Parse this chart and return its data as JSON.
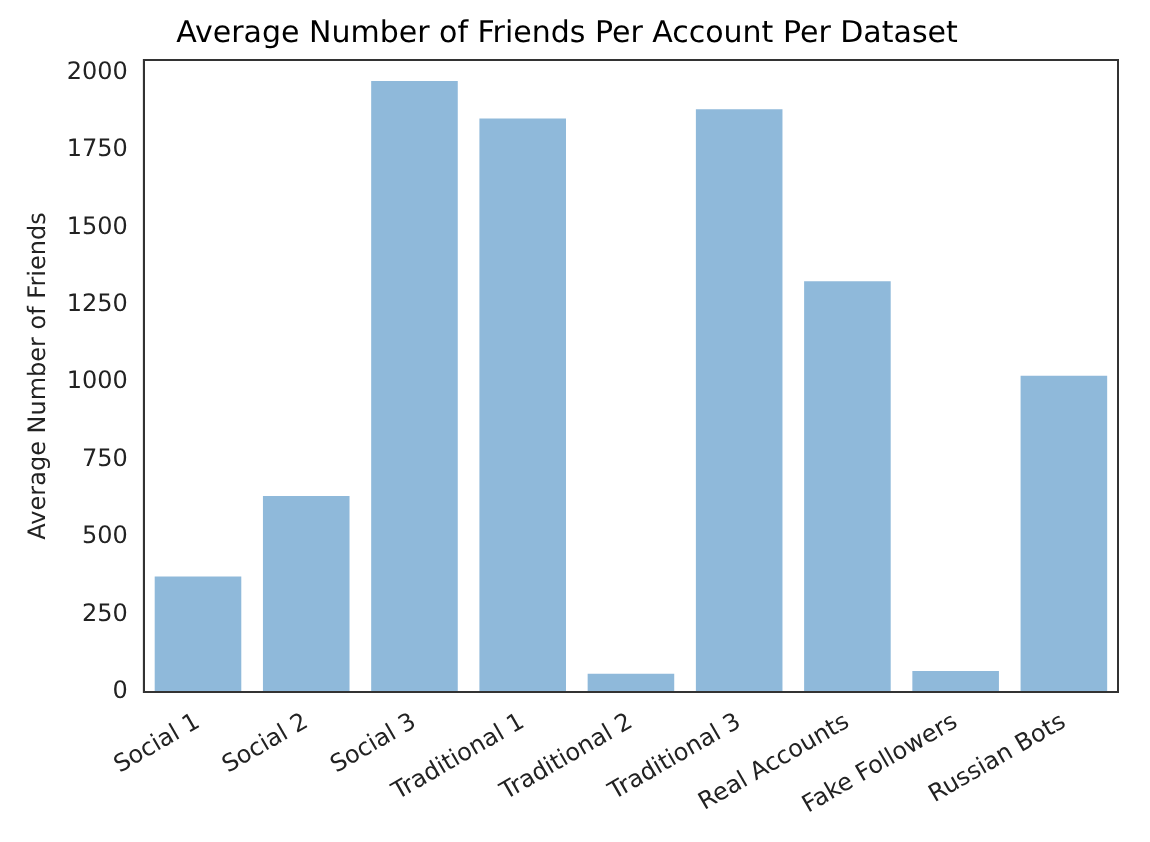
{
  "chart_data": {
    "type": "bar",
    "title": "Average Number of Friends Per Account Per Dataset",
    "ylabel": "Average Number of Friends",
    "categories": [
      "Social 1",
      "Social 2",
      "Social 3",
      "Traditional 1",
      "Traditional 2",
      "Traditional 3",
      "Real Accounts",
      "Fake Followers",
      "Russian Bots"
    ],
    "values": [
      373,
      633,
      1972,
      1851,
      59,
      1881,
      1326,
      68,
      1021
    ],
    "color": "#8fb9da",
    "ylim": [
      0,
      2040
    ],
    "yticks": [
      0,
      250,
      500,
      750,
      1000,
      1250,
      1500,
      1750,
      2000
    ],
    "grid": false,
    "legend": false
  }
}
